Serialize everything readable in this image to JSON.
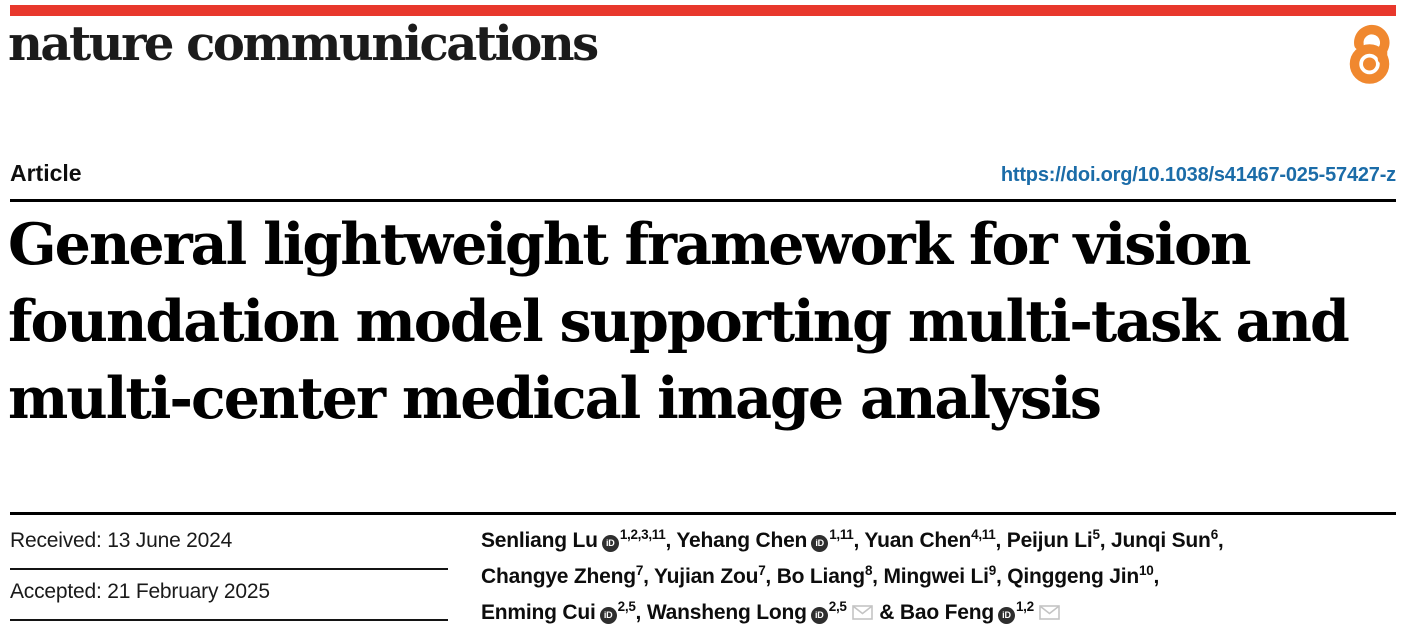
{
  "masthead": {
    "wordmark": "nature communications"
  },
  "article_header": {
    "label": "Article",
    "doi": "https://doi.org/10.1038/s41467-025-57427-z"
  },
  "title": {
    "lines": [
      "General lightweight framework for vision",
      "foundation model supporting multi-task and",
      "multi-center medical image analysis"
    ]
  },
  "dates": {
    "items": [
      {
        "text": "Received: 13 June 2024"
      },
      {
        "text": "Accepted: 21 February 2025"
      }
    ]
  },
  "authors": {
    "lines": [
      {
        "items": [
          {
            "name": "Senliang Lu",
            "orcid": true,
            "sup": "1,2,3,11",
            "envelope": false,
            "sep": ", "
          },
          {
            "name": "Yehang Chen",
            "orcid": true,
            "sup": "1,11",
            "envelope": false,
            "sep": ", "
          },
          {
            "name": "Yuan Chen",
            "orcid": false,
            "sup": "4,11",
            "envelope": false,
            "sep": ", "
          },
          {
            "name": "Peijun Li",
            "orcid": false,
            "sup": "5",
            "envelope": false,
            "sep": ", "
          },
          {
            "name": "Junqi Sun",
            "orcid": false,
            "sup": "6",
            "envelope": false,
            "sep": ","
          }
        ]
      },
      {
        "items": [
          {
            "name": "Changye Zheng",
            "orcid": false,
            "sup": "7",
            "envelope": false,
            "sep": ", "
          },
          {
            "name": "Yujian Zou",
            "orcid": false,
            "sup": "7",
            "envelope": false,
            "sep": ", "
          },
          {
            "name": "Bo Liang",
            "orcid": false,
            "sup": "8",
            "envelope": false,
            "sep": ", "
          },
          {
            "name": "Mingwei Li",
            "orcid": false,
            "sup": "9",
            "envelope": false,
            "sep": ", "
          },
          {
            "name": "Qinggeng Jin",
            "orcid": false,
            "sup": "10",
            "envelope": false,
            "sep": ","
          }
        ]
      },
      {
        "items": [
          {
            "name": "Enming Cui",
            "orcid": true,
            "sup": "2,5",
            "envelope": false,
            "sep": ", "
          },
          {
            "name": "Wansheng Long",
            "orcid": true,
            "sup": "2,5",
            "envelope": true,
            "sep": " & "
          },
          {
            "name": "Bao Feng",
            "orcid": true,
            "sup": "1,2",
            "envelope": true,
            "sep": ""
          }
        ]
      }
    ]
  },
  "icons": {
    "open_access": "open-access-icon",
    "orcid_text": "iD",
    "envelope": "envelope-icon"
  },
  "colors": {
    "brand_red": "#e8382c",
    "doi_blue": "#1b6ca8",
    "open_access_orange": "#f0882f",
    "orcid_dark": "#2e2e2e",
    "envelope_gray": "#c4c4c4",
    "title_black": "#000000"
  }
}
